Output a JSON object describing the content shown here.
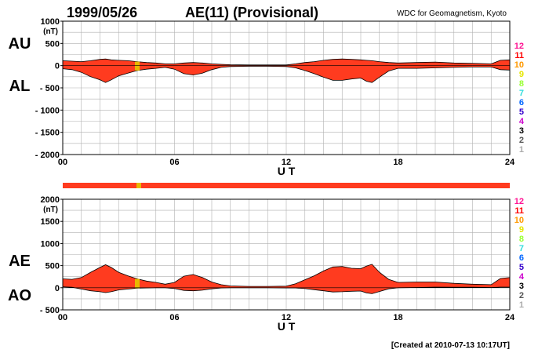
{
  "header": {
    "date": "1999/05/26",
    "title": "AE(11) (Provisional)",
    "source": "WDC for Geomagnetism, Kyoto"
  },
  "footer": {
    "created": "[Created at 2010-07-13 10:17UT]"
  },
  "colors": {
    "fill": "#ff3b1f",
    "bar": "#ff3b1f",
    "bar_highlight": "#e8b800",
    "grid": "#b0b0b0",
    "axis": "#000000"
  },
  "legend": {
    "labels": [
      "12",
      "11",
      "10",
      "9",
      "8",
      "7",
      "6",
      "5",
      "4",
      "3",
      "2",
      "1"
    ],
    "colors": [
      "#ff1493",
      "#ff0000",
      "#ff9900",
      "#e6e600",
      "#99ff33",
      "#33dddd",
      "#0066ff",
      "#3300cc",
      "#cc00cc",
      "#000000",
      "#555555",
      "#aaaaaa"
    ]
  },
  "chart_data": [
    {
      "type": "area",
      "panel": "AU/AL",
      "side_labels": [
        "AU",
        "AL"
      ],
      "unit_label": "(nT)",
      "xlabel": "U T",
      "x_ticks": [
        "00",
        "06",
        "12",
        "18",
        "24"
      ],
      "xlim": [
        0,
        24
      ],
      "ylim": [
        -2000,
        1000
      ],
      "y_ticks": [
        1000,
        500,
        0,
        -500,
        -1000,
        -1500,
        -2000
      ],
      "y_tick_labels": [
        "1000",
        "500",
        "0",
        "- 500",
        "- 1000",
        "- 1500",
        "- 2000"
      ],
      "grid": true,
      "highlight_hour": 4,
      "x": [
        0,
        0.5,
        1,
        1.5,
        2,
        2.3,
        2.6,
        3,
        3.5,
        4,
        4.5,
        5,
        5.5,
        6,
        6.5,
        7,
        7.5,
        8,
        8.5,
        9,
        10,
        11,
        12,
        12.5,
        13,
        13.5,
        14,
        14.5,
        15,
        15.5,
        16,
        16.3,
        16.6,
        17,
        17.5,
        18,
        19,
        20,
        21,
        22,
        23,
        23.5,
        24
      ],
      "series": [
        {
          "name": "AU",
          "values": [
            110,
            100,
            90,
            110,
            140,
            150,
            130,
            120,
            110,
            90,
            70,
            60,
            40,
            40,
            60,
            70,
            60,
            40,
            30,
            20,
            15,
            15,
            15,
            40,
            70,
            90,
            120,
            140,
            150,
            140,
            130,
            120,
            110,
            90,
            70,
            60,
            70,
            80,
            60,
            50,
            40,
            120,
            130
          ]
        },
        {
          "name": "AL",
          "values": [
            -70,
            -90,
            -150,
            -250,
            -320,
            -380,
            -320,
            -230,
            -170,
            -110,
            -80,
            -60,
            -40,
            -80,
            -180,
            -210,
            -170,
            -90,
            -40,
            -20,
            -15,
            -15,
            -20,
            -50,
            -110,
            -180,
            -260,
            -330,
            -330,
            -300,
            -280,
            -350,
            -380,
            -260,
            -120,
            -60,
            -60,
            -50,
            -40,
            -30,
            -30,
            -90,
            -100
          ]
        }
      ]
    },
    {
      "type": "area",
      "panel": "AE/AO",
      "side_labels": [
        "AE",
        "AO"
      ],
      "unit_label": "(nT)",
      "xlabel": "U T",
      "x_ticks": [
        "00",
        "06",
        "12",
        "18",
        "24"
      ],
      "xlim": [
        0,
        24
      ],
      "ylim": [
        -500,
        2000
      ],
      "y_ticks": [
        2000,
        1500,
        1000,
        500,
        0,
        -500
      ],
      "y_tick_labels": [
        "2000",
        "1500",
        "1000",
        "500",
        "0",
        "- 500"
      ],
      "grid": true,
      "highlight_hour": 4,
      "x": [
        0,
        0.5,
        1,
        1.5,
        2,
        2.3,
        2.6,
        3,
        3.5,
        4,
        4.5,
        5,
        5.5,
        6,
        6.5,
        7,
        7.5,
        8,
        8.5,
        9,
        10,
        11,
        12,
        12.5,
        13,
        13.5,
        14,
        14.5,
        15,
        15.5,
        16,
        16.3,
        16.6,
        17,
        17.5,
        18,
        19,
        20,
        21,
        22,
        23,
        23.5,
        24
      ],
      "series": [
        {
          "name": "AE",
          "values": [
            200,
            190,
            230,
            350,
            460,
            520,
            460,
            350,
            270,
            200,
            150,
            120,
            80,
            120,
            260,
            300,
            230,
            130,
            70,
            40,
            30,
            30,
            35,
            90,
            180,
            270,
            380,
            470,
            480,
            440,
            430,
            490,
            530,
            350,
            190,
            120,
            130,
            130,
            100,
            80,
            70,
            210,
            230
          ]
        },
        {
          "name": "AO",
          "values": [
            20,
            10,
            -30,
            -70,
            -90,
            -110,
            -90,
            -50,
            -30,
            -10,
            -5,
            0,
            0,
            -20,
            -60,
            -70,
            -55,
            -25,
            -5,
            0,
            0,
            0,
            -5,
            -5,
            -20,
            -45,
            -70,
            -95,
            -90,
            -80,
            -75,
            -115,
            -135,
            -85,
            -25,
            0,
            5,
            15,
            10,
            10,
            5,
            15,
            15
          ]
        }
      ]
    }
  ]
}
